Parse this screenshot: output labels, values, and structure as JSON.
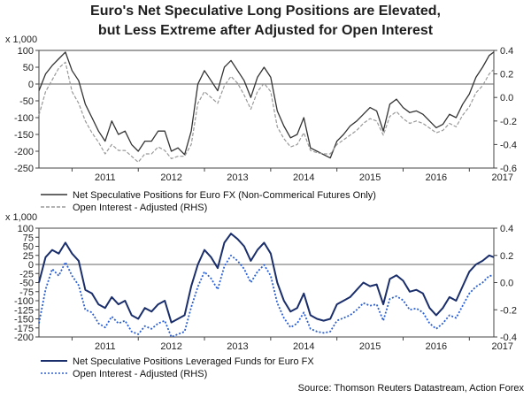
{
  "title": {
    "line1": "Euro's Net Speculative Long Positions are Elevated,",
    "line2": "but Less Extreme after Adjusted for Open Interest"
  },
  "source": "Source: Thomson Reuters Datastream, Action Forex",
  "chart_data": [
    {
      "type": "line",
      "y_unit_label": "x 1,000",
      "x_start": 2010.5,
      "x_end": 2017.37,
      "x_ticks": [
        "2011",
        "2012",
        "2013",
        "2014",
        "2015",
        "2016",
        "2017"
      ],
      "ylim": [
        -250,
        100
      ],
      "yticks": [
        100,
        50,
        0,
        -50,
        -100,
        -150,
        -200,
        -250
      ],
      "ylim_right": [
        -0.6,
        0.4
      ],
      "yticks_right": [
        "0.4",
        "0.2",
        "0.0",
        "-0.2",
        "-0.4",
        "-0.6"
      ],
      "yticks_right_values": [
        0.4,
        0.2,
        0.0,
        -0.2,
        -0.4,
        -0.6
      ],
      "colors": {
        "primary": "#333333",
        "secondary": "#999999"
      },
      "series": [
        {
          "name": "Net Speculative Positions for Euro FX (Non-Commerical Futures Only)",
          "axis": "left",
          "style": "solid",
          "x": [
            2010.5,
            2010.6,
            2010.7,
            2010.8,
            2010.9,
            2011.0,
            2011.1,
            2011.2,
            2011.3,
            2011.4,
            2011.5,
            2011.6,
            2011.7,
            2011.8,
            2011.9,
            2012.0,
            2012.1,
            2012.2,
            2012.3,
            2012.4,
            2012.5,
            2012.6,
            2012.7,
            2012.8,
            2012.9,
            2013.0,
            2013.1,
            2013.2,
            2013.3,
            2013.4,
            2013.5,
            2013.6,
            2013.7,
            2013.8,
            2013.9,
            2014.0,
            2014.1,
            2014.2,
            2014.3,
            2014.4,
            2014.5,
            2014.6,
            2014.7,
            2014.8,
            2014.9,
            2015.0,
            2015.1,
            2015.2,
            2015.3,
            2015.4,
            2015.5,
            2015.6,
            2015.7,
            2015.8,
            2015.9,
            2016.0,
            2016.1,
            2016.2,
            2016.3,
            2016.4,
            2016.5,
            2016.6,
            2016.7,
            2016.8,
            2016.9,
            2017.0,
            2017.1,
            2017.2,
            2017.3,
            2017.37
          ],
          "values": [
            -20,
            30,
            55,
            75,
            95,
            40,
            10,
            -60,
            -100,
            -140,
            -170,
            -110,
            -150,
            -140,
            -180,
            -200,
            -170,
            -170,
            -140,
            -140,
            -200,
            -190,
            -210,
            -140,
            0,
            40,
            10,
            -20,
            50,
            70,
            40,
            10,
            -40,
            20,
            50,
            20,
            -80,
            -125,
            -160,
            -150,
            -100,
            -190,
            -200,
            -210,
            -220,
            -170,
            -150,
            -125,
            -110,
            -90,
            -70,
            -80,
            -140,
            -60,
            -45,
            -70,
            -85,
            -80,
            -90,
            -110,
            -130,
            -120,
            -90,
            -100,
            -60,
            -30,
            20,
            50,
            85,
            95
          ]
        },
        {
          "name": "Open Interest - Adjusted (RHS)",
          "axis": "right",
          "style": "dashed",
          "x": [
            2010.5,
            2010.6,
            2010.7,
            2010.8,
            2010.9,
            2011.0,
            2011.1,
            2011.2,
            2011.3,
            2011.4,
            2011.5,
            2011.6,
            2011.7,
            2011.8,
            2011.9,
            2012.0,
            2012.1,
            2012.2,
            2012.3,
            2012.4,
            2012.5,
            2012.6,
            2012.7,
            2012.8,
            2012.9,
            2013.0,
            2013.1,
            2013.2,
            2013.3,
            2013.4,
            2013.5,
            2013.6,
            2013.7,
            2013.8,
            2013.9,
            2014.0,
            2014.1,
            2014.2,
            2014.3,
            2014.4,
            2014.5,
            2014.6,
            2014.7,
            2014.8,
            2014.9,
            2015.0,
            2015.1,
            2015.2,
            2015.3,
            2015.4,
            2015.5,
            2015.6,
            2015.7,
            2015.8,
            2015.9,
            2016.0,
            2016.1,
            2016.2,
            2016.3,
            2016.4,
            2016.5,
            2016.6,
            2016.7,
            2016.8,
            2016.9,
            2017.0,
            2017.1,
            2017.2,
            2017.3,
            2017.37
          ],
          "values": [
            -0.15,
            0.05,
            0.15,
            0.25,
            0.3,
            0.05,
            -0.05,
            -0.2,
            -0.3,
            -0.38,
            -0.48,
            -0.4,
            -0.45,
            -0.45,
            -0.5,
            -0.55,
            -0.48,
            -0.48,
            -0.42,
            -0.45,
            -0.52,
            -0.5,
            -0.5,
            -0.4,
            -0.05,
            0.05,
            0.0,
            -0.05,
            0.1,
            0.18,
            0.12,
            0.02,
            -0.1,
            0.05,
            0.12,
            0.05,
            -0.25,
            -0.35,
            -0.42,
            -0.4,
            -0.3,
            -0.45,
            -0.47,
            -0.48,
            -0.48,
            -0.4,
            -0.36,
            -0.32,
            -0.28,
            -0.22,
            -0.18,
            -0.2,
            -0.32,
            -0.16,
            -0.12,
            -0.18,
            -0.22,
            -0.2,
            -0.22,
            -0.26,
            -0.3,
            -0.28,
            -0.22,
            -0.25,
            -0.15,
            -0.08,
            0.04,
            0.1,
            0.2,
            0.24
          ]
        }
      ],
      "legend": "bottom"
    },
    {
      "type": "line",
      "y_unit_label": "x 1,000",
      "x_start": 2010.5,
      "x_end": 2017.37,
      "x_ticks": [
        "2011",
        "2012",
        "2013",
        "2014",
        "2015",
        "2016",
        "2017"
      ],
      "ylim": [
        -200,
        100
      ],
      "yticks": [
        100,
        75,
        50,
        25,
        0,
        -25,
        -50,
        -75,
        -100,
        -125,
        -150,
        -175,
        -200
      ],
      "ylim_right": [
        -0.4,
        0.4
      ],
      "yticks_right": [
        "0.4",
        "0.2",
        "0.0",
        "-0.2",
        "-0.4"
      ],
      "yticks_right_values": [
        0.4,
        0.2,
        0.0,
        -0.2,
        -0.4
      ],
      "colors": {
        "primary": "#1a2e6b",
        "secondary": "#2b5fd0"
      },
      "series": [
        {
          "name": "Net Speculative Positions Leveraged Funds for Euro FX",
          "axis": "left",
          "style": "solid",
          "x": [
            2010.5,
            2010.6,
            2010.7,
            2010.8,
            2010.9,
            2011.0,
            2011.1,
            2011.2,
            2011.3,
            2011.4,
            2011.5,
            2011.6,
            2011.7,
            2011.8,
            2011.9,
            2012.0,
            2012.1,
            2012.2,
            2012.3,
            2012.4,
            2012.5,
            2012.6,
            2012.7,
            2012.8,
            2012.9,
            2013.0,
            2013.1,
            2013.2,
            2013.3,
            2013.4,
            2013.5,
            2013.6,
            2013.7,
            2013.8,
            2013.9,
            2014.0,
            2014.1,
            2014.2,
            2014.3,
            2014.4,
            2014.5,
            2014.6,
            2014.7,
            2014.8,
            2014.9,
            2015.0,
            2015.1,
            2015.2,
            2015.3,
            2015.4,
            2015.5,
            2015.6,
            2015.7,
            2015.8,
            2015.9,
            2016.0,
            2016.1,
            2016.2,
            2016.3,
            2016.4,
            2016.5,
            2016.6,
            2016.7,
            2016.8,
            2016.9,
            2017.0,
            2017.1,
            2017.2,
            2017.3,
            2017.37
          ],
          "values": [
            -50,
            20,
            40,
            30,
            60,
            30,
            10,
            -70,
            -80,
            -110,
            -120,
            -90,
            -110,
            -100,
            -140,
            -150,
            -120,
            -130,
            -110,
            -100,
            -160,
            -150,
            -140,
            -60,
            0,
            40,
            20,
            -10,
            60,
            85,
            70,
            50,
            10,
            40,
            60,
            30,
            -50,
            -100,
            -130,
            -120,
            -80,
            -140,
            -150,
            -155,
            -150,
            -110,
            -100,
            -90,
            -70,
            -50,
            -60,
            -55,
            -110,
            -40,
            -30,
            -45,
            -75,
            -70,
            -80,
            -120,
            -140,
            -120,
            -90,
            -100,
            -60,
            -20,
            0,
            10,
            25,
            20
          ]
        },
        {
          "name": "Open Interest - Adjusted (RHS)",
          "axis": "right",
          "style": "dotted",
          "x": [
            2010.5,
            2010.6,
            2010.7,
            2010.8,
            2010.9,
            2011.0,
            2011.1,
            2011.2,
            2011.3,
            2011.4,
            2011.5,
            2011.6,
            2011.7,
            2011.8,
            2011.9,
            2012.0,
            2012.1,
            2012.2,
            2012.3,
            2012.4,
            2012.5,
            2012.6,
            2012.7,
            2012.8,
            2012.9,
            2013.0,
            2013.1,
            2013.2,
            2013.3,
            2013.4,
            2013.5,
            2013.6,
            2013.7,
            2013.8,
            2013.9,
            2014.0,
            2014.1,
            2014.2,
            2014.3,
            2014.4,
            2014.5,
            2014.6,
            2014.7,
            2014.8,
            2014.9,
            2015.0,
            2015.1,
            2015.2,
            2015.3,
            2015.4,
            2015.5,
            2015.6,
            2015.7,
            2015.8,
            2015.9,
            2016.0,
            2016.1,
            2016.2,
            2016.3,
            2016.4,
            2016.5,
            2016.6,
            2016.7,
            2016.8,
            2016.9,
            2017.0,
            2017.1,
            2017.2,
            2017.3,
            2017.37
          ],
          "values": [
            -0.3,
            -0.05,
            0.1,
            0.05,
            0.15,
            0.05,
            -0.02,
            -0.2,
            -0.22,
            -0.3,
            -0.33,
            -0.25,
            -0.3,
            -0.28,
            -0.36,
            -0.38,
            -0.32,
            -0.34,
            -0.3,
            -0.28,
            -0.4,
            -0.38,
            -0.36,
            -0.18,
            -0.03,
            0.08,
            0.03,
            -0.05,
            0.12,
            0.2,
            0.16,
            0.1,
            0.0,
            0.08,
            0.13,
            0.05,
            -0.15,
            -0.26,
            -0.33,
            -0.3,
            -0.22,
            -0.34,
            -0.36,
            -0.37,
            -0.36,
            -0.28,
            -0.26,
            -0.24,
            -0.2,
            -0.15,
            -0.17,
            -0.16,
            -0.28,
            -0.12,
            -0.1,
            -0.13,
            -0.2,
            -0.19,
            -0.22,
            -0.3,
            -0.34,
            -0.3,
            -0.24,
            -0.26,
            -0.17,
            -0.08,
            -0.03,
            0.0,
            0.05,
            0.05
          ]
        }
      ],
      "legend": "bottom"
    }
  ]
}
